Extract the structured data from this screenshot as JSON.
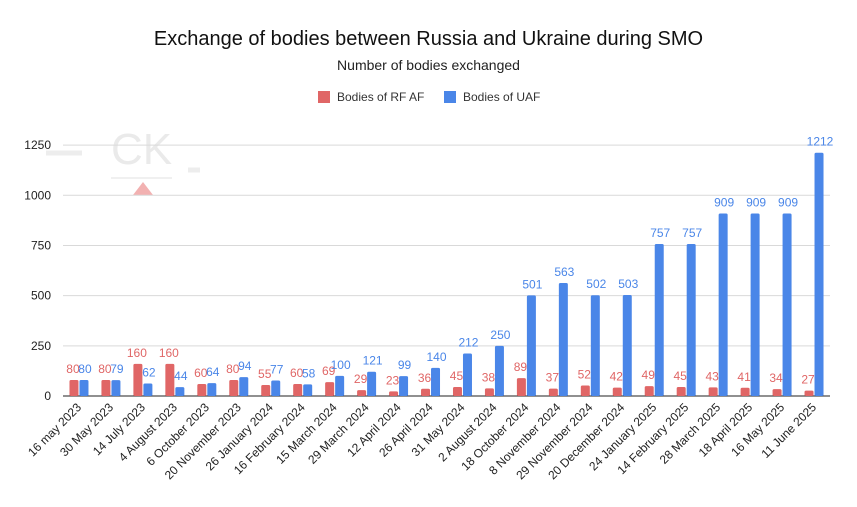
{
  "chart_data": {
    "type": "bar",
    "title": "Exchange of bodies between Russia and Ukraine during SMO",
    "subtitle": "Number of bodies exchanged",
    "xlabel": "",
    "ylabel": "",
    "ylim": [
      0,
      1350
    ],
    "y_ticks": [
      "0",
      "250",
      "500",
      "750",
      "1000",
      "1250"
    ],
    "grid": true,
    "legend_position": "top-center",
    "categories": [
      "16 may 2023",
      "30 May 2023",
      "14 July 2023",
      "4 August 2023",
      "6 October 2023",
      "20 November 2023",
      "26 January 2024",
      "16 February 2024",
      "15 March 2024",
      "29 March 2024",
      "12 April 2024",
      "26 April 2024",
      "31 May 2024",
      "2 August 2024",
      "18 October 2024",
      "8 November 2024",
      "29 November 2024",
      "20 December 2024",
      "24 January 2025",
      "14 February 2025",
      "28 March 2025",
      "18 April 2025",
      "16 May 2025",
      "11 June 2025"
    ],
    "series": [
      {
        "name": "Bodies of RF AF",
        "color": "#e06666",
        "values": [
          80,
          80,
          160,
          160,
          60,
          80,
          55,
          60,
          69,
          29,
          23,
          36,
          45,
          38,
          89,
          37,
          52,
          42,
          49,
          45,
          43,
          41,
          34,
          27
        ],
        "labels": [
          "80",
          "80",
          "160",
          "160",
          "60",
          "80",
          "55",
          "60",
          "69",
          "29",
          "23",
          "36",
          "45",
          "38",
          "89",
          "37",
          "52",
          "42",
          "49",
          "45",
          "43",
          "41",
          "34",
          "27"
        ]
      },
      {
        "name": "Bodies of UAF",
        "color": "#4a86e8",
        "values": [
          80,
          79,
          62,
          44,
          64,
          94,
          77,
          58,
          100,
          121,
          99,
          140,
          212,
          250,
          501,
          563,
          502,
          503,
          757,
          757,
          909,
          909,
          909,
          1212
        ],
        "labels": [
          "80",
          "79",
          "62",
          "44",
          "64",
          "94",
          "77",
          "58",
          "100",
          "121",
          "99",
          "140",
          "212",
          "250",
          "501",
          "563",
          "502",
          "503",
          "757",
          "757",
          "909",
          "909",
          "909",
          "1212"
        ]
      }
    ]
  },
  "watermark": {
    "text": "CK",
    "color": "#ef9a9a"
  }
}
